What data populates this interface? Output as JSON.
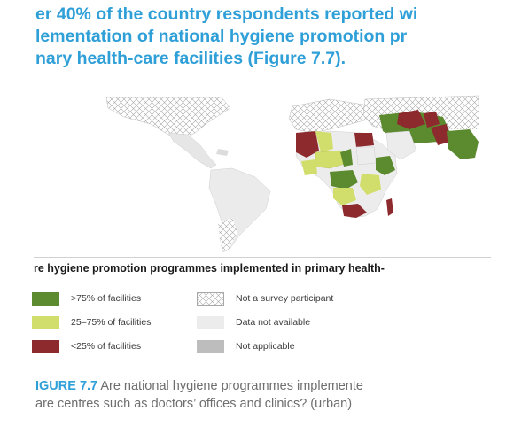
{
  "headline": {
    "lines": [
      "er 40% of the country respondents reported wi",
      "lementation of national hygiene promotion pr",
      "nary health-care facilities (Figure 7.7)."
    ]
  },
  "legend": {
    "title": "re hygiene promotion programmes implemented in primary health-",
    "items": [
      {
        "label": ">75% of facilities",
        "color": "#5c8a2e"
      },
      {
        "label": "25–75% of facilities",
        "color": "#d2de6c"
      },
      {
        "label": "<25% of facilities",
        "color": "#8c2a2e"
      },
      {
        "label": "Not a survey participant",
        "color": "#ffffff",
        "pattern": "crosshatch"
      },
      {
        "label": "Data not available",
        "color": "#ececec"
      },
      {
        "label": "Not applicable",
        "color": "#bdbdbd"
      }
    ]
  },
  "caption": {
    "figure_label": "IGURE 7.7",
    "line1": " Are national hygiene programmes implemente",
    "line2": "are centres such as doctors’ offices and clinics? (urban)"
  }
}
